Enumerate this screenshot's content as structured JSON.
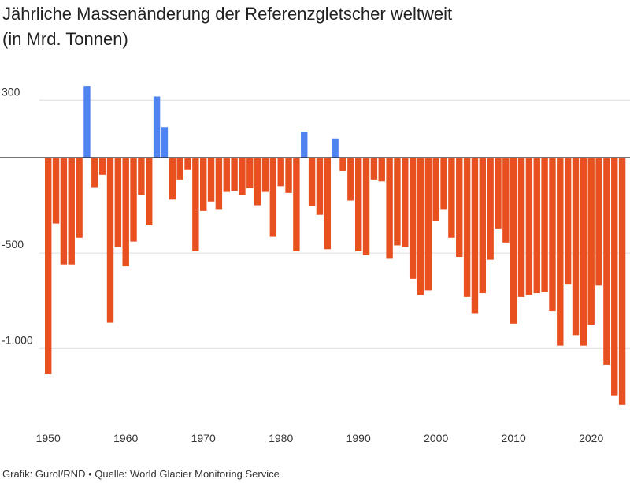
{
  "header": {
    "title_line1": "Jährliche Massenänderung der Referenzgletscher weltweit",
    "title_line2": "(in Mrd. Tonnen)"
  },
  "footer": {
    "credit": "Grafik: Gurol/RND • Quelle: World Glacier Monitoring Service"
  },
  "colors": {
    "positive": "#4f84f0",
    "negative": "#e8501f",
    "gridline": "#dddddd",
    "zeroline": "#222222"
  },
  "chart_data": {
    "type": "bar",
    "title": "Jährliche Massenänderung der Referenzgletscher weltweit (in Mrd. Tonnen)",
    "xlabel": "",
    "ylabel": "",
    "ylim": [
      -1300,
      380
    ],
    "y_ticks": [
      300,
      -500,
      -1000
    ],
    "y_tick_labels": [
      "300",
      "-500",
      "-1.000"
    ],
    "x_ticks": [
      1950,
      1960,
      1970,
      1980,
      1990,
      2000,
      2010,
      2020
    ],
    "x_tick_labels": [
      "1950",
      "1960",
      "1970",
      "1980",
      "1990",
      "2000",
      "2010",
      "2020"
    ],
    "grid": true,
    "legend": "none",
    "categories": [
      1950,
      1951,
      1952,
      1953,
      1954,
      1955,
      1956,
      1957,
      1958,
      1959,
      1960,
      1961,
      1962,
      1963,
      1964,
      1965,
      1966,
      1967,
      1968,
      1969,
      1970,
      1971,
      1972,
      1973,
      1974,
      1975,
      1976,
      1977,
      1978,
      1979,
      1980,
      1981,
      1982,
      1983,
      1984,
      1985,
      1986,
      1987,
      1988,
      1989,
      1990,
      1991,
      1992,
      1993,
      1994,
      1995,
      1996,
      1997,
      1998,
      1999,
      2000,
      2001,
      2002,
      2003,
      2004,
      2005,
      2006,
      2007,
      2008,
      2009,
      2010,
      2011,
      2012,
      2013,
      2014,
      2015,
      2016,
      2017,
      2018,
      2019,
      2020,
      2021,
      2022,
      2023,
      2024
    ],
    "values": [
      -1135,
      -345,
      -560,
      -560,
      -420,
      375,
      -155,
      -90,
      -865,
      -470,
      -570,
      -440,
      -195,
      -355,
      320,
      160,
      -220,
      -115,
      -65,
      -490,
      -280,
      -230,
      -270,
      -180,
      -175,
      -195,
      -160,
      -250,
      -180,
      -415,
      -150,
      -185,
      -490,
      135,
      -255,
      -300,
      -480,
      100,
      -70,
      -225,
      -490,
      -510,
      -115,
      -125,
      -530,
      -460,
      -470,
      -635,
      -720,
      -695,
      -330,
      -270,
      -420,
      -520,
      -730,
      -815,
      -710,
      -535,
      -375,
      -445,
      -870,
      -730,
      -720,
      -710,
      -705,
      -805,
      -985,
      -665,
      -930,
      -985,
      -875,
      -670,
      -1085,
      -1245,
      -1295
    ]
  }
}
